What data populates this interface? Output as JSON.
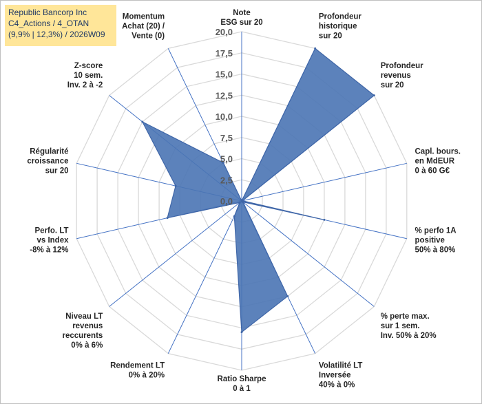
{
  "chart_data": {
    "type": "radar",
    "title_lines": [
      "Republic Bancorp Inc",
      "C4_Actions / 4_OTAN",
      "(9,9% | 12,3%) / 2026W09"
    ],
    "axes": [
      {
        "label_lines": [
          "Note",
          "ESG sur 20"
        ],
        "value": 0
      },
      {
        "label_lines": [
          "Profondeur",
          "historique",
          "sur 20"
        ],
        "value": 20
      },
      {
        "label_lines": [
          "Profondeur",
          "revenus",
          "sur 20"
        ],
        "value": 20
      },
      {
        "label_lines": [
          "Capl. bours.",
          "en MdEUR",
          "0 à 60 G€"
        ],
        "value": 0.1
      },
      {
        "label_lines": [
          "% perfo 1A",
          "positive",
          "50% à 80%"
        ],
        "value": 10
      },
      {
        "label_lines": [
          "% perte max.",
          "sur 1 sem.",
          "Inv. 50% à 20%"
        ],
        "value": 0.2
      },
      {
        "label_lines": [
          "Volatilité LT",
          "Inversée",
          "40% à 0%"
        ],
        "value": 12.5
      },
      {
        "label_lines": [
          "Ratio Sharpe",
          "0 à 1"
        ],
        "value": 15.5
      },
      {
        "label_lines": [
          "Rendement LT",
          "0% à 20%"
        ],
        "value": 2
      },
      {
        "label_lines": [
          "Niveau LT",
          "revenus",
          "reccurents",
          "0% à 6%"
        ],
        "value": 0.3
      },
      {
        "label_lines": [
          "Perfo. LT",
          "vs Index",
          "-8% à 12%"
        ],
        "value": 9
      },
      {
        "label_lines": [
          "Régularité",
          "croissance",
          "sur 20"
        ],
        "value": 8
      },
      {
        "label_lines": [
          "Z-score",
          "10 sem.",
          "Inv. 2 à -2"
        ],
        "value": 15
      },
      {
        "label_lines": [
          "Momentum",
          "Achat (20) /",
          "Vente (0)"
        ],
        "value": 5
      }
    ],
    "rmin": 0,
    "rmax": 20,
    "ticks": [
      "0,0",
      "2,5",
      "5,0",
      "7,5",
      "10,0",
      "12,5",
      "15,0",
      "17,5",
      "20,0"
    ],
    "series_color": "#4a74b4"
  }
}
